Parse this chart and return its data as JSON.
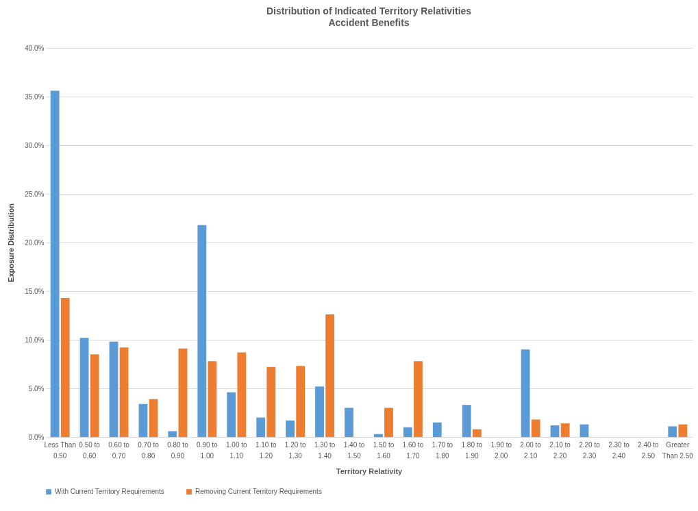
{
  "chart_data": {
    "type": "bar",
    "title": "Distribution of Indicated Territory Relativities",
    "subtitle": "Accident Benefits",
    "xlabel": "Territory Relativity",
    "ylabel": "Exposure Distribution",
    "categories": [
      "Less Than 0.50",
      "0.50 to 0.60",
      "0.60 to 0.70",
      "0.70 to 0.80",
      "0.80 to 0.90",
      "0.90 to 1.00",
      "1.00 to 1.10",
      "1.10 to 1.20",
      "1.20 to 1.30",
      "1.30 to 1.40",
      "1.40 to 1.50",
      "1.50 to 1.60",
      "1.60 to 1.70",
      "1.70 to 1.80",
      "1.80 to 1.90",
      "1.90 to 2.00",
      "2.00 to 2.10",
      "2.10 to 2.20",
      "2.20 to 2.30",
      "2.30 to 2.40",
      "2.40 to 2.50",
      "Greater Than 2.50"
    ],
    "series": [
      {
        "name": "With Current Territory Requirements",
        "color": "#5b9bd5",
        "values": [
          35.6,
          10.2,
          9.8,
          3.4,
          0.6,
          21.8,
          4.6,
          2.0,
          1.7,
          5.2,
          3.0,
          0.3,
          1.0,
          1.5,
          3.3,
          null,
          9.0,
          1.2,
          1.3,
          null,
          null,
          1.1
        ]
      },
      {
        "name": "Removing Current Territory Requirements",
        "color": "#ed7d31",
        "values": [
          14.3,
          8.5,
          9.2,
          3.9,
          9.1,
          7.8,
          8.7,
          7.2,
          7.3,
          12.6,
          null,
          3.0,
          7.8,
          null,
          0.8,
          null,
          1.8,
          1.4,
          null,
          null,
          null,
          1.3
        ]
      }
    ],
    "ylim": [
      0,
      40
    ],
    "yticks": [
      {
        "value": 0,
        "label": "0.0%"
      },
      {
        "value": 5,
        "label": "5.0%"
      },
      {
        "value": 10,
        "label": "10.0%"
      },
      {
        "value": 15,
        "label": "15.0%"
      },
      {
        "value": 20,
        "label": "20.0%"
      },
      {
        "value": 25,
        "label": "25.0%"
      },
      {
        "value": 30,
        "label": "30.0%"
      },
      {
        "value": 35,
        "label": "35.0%"
      },
      {
        "value": 40,
        "label": "40.0%"
      }
    ],
    "grid": "y",
    "legend": "bottom"
  }
}
